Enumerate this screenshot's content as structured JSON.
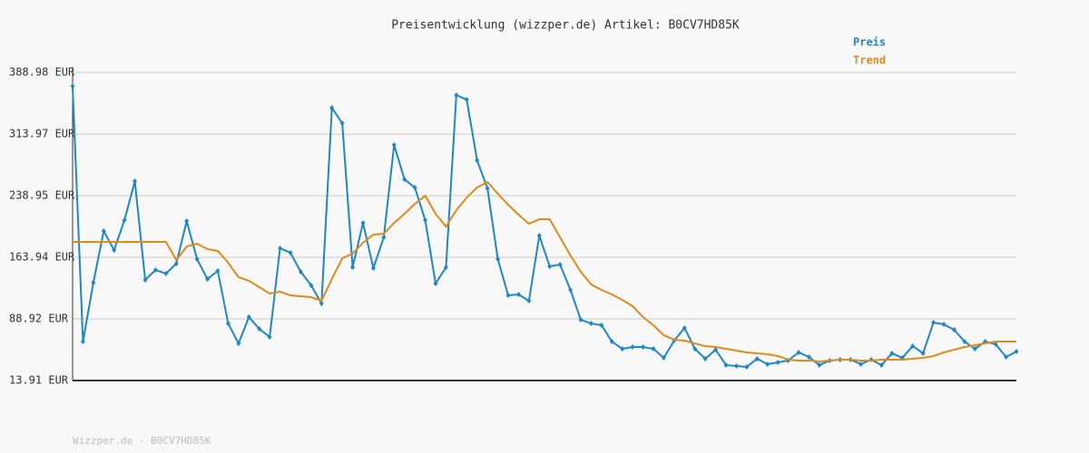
{
  "chart_data": {
    "type": "line",
    "title": "Preisentwicklung (wizzper.de) Artikel: B0CV7HD85K",
    "footer": "Wizzper.de - B0CV7HD85K",
    "ylim": [
      13.91,
      388.98
    ],
    "yticks": [
      {
        "value": 13.91,
        "label": "13.91 EUR"
      },
      {
        "value": 88.92,
        "label": "88.92 EUR"
      },
      {
        "value": 163.94,
        "label": "163.94 EUR"
      },
      {
        "value": 238.95,
        "label": "238.95 EUR"
      },
      {
        "value": 313.97,
        "label": "313.97 EUR"
      },
      {
        "value": 388.98,
        "label": "388.98 EUR"
      }
    ],
    "grid": true,
    "legend": "top-right",
    "series": [
      {
        "name": "Preis",
        "color": "#1f87c3",
        "markers": true,
        "values": [
          372.4,
          61.3,
          133.0,
          195.9,
          172.7,
          209.2,
          256.6,
          136.4,
          148.5,
          144.1,
          156.2,
          208.1,
          161.7,
          137.5,
          147.4,
          83.4,
          59.1,
          91.1,
          76.8,
          66.9,
          175.0,
          169.5,
          146.3,
          129.7,
          107.7,
          345.9,
          327.2,
          151.8,
          205.9,
          150.7,
          188.2,
          300.7,
          258.8,
          248.9,
          209.2,
          131.9,
          151.8,
          361.4,
          355.9,
          282.0,
          247.8,
          161.7,
          117.6,
          118.7,
          111.0,
          190.4,
          152.9,
          155.1,
          124.2,
          87.8,
          83.4,
          81.2,
          61.3,
          52.5,
          54.7,
          54.7,
          52.5,
          41.5,
          62.4,
          77.9,
          52.5,
          40.4,
          51.4,
          32.7,
          31.6,
          30.5,
          40.4,
          33.8,
          36.0,
          38.2,
          48.1,
          42.6,
          32.7,
          38.2,
          39.3,
          39.3,
          33.8,
          39.3,
          32.7,
          47.0,
          41.5,
          55.8,
          47.0,
          84.5,
          82.3,
          75.7,
          61.3,
          52.5,
          61.3,
          58.0,
          42.6,
          49.2
        ]
      },
      {
        "name": "Trend",
        "color": "#e08a1e",
        "markers": false,
        "values": [
          182.7,
          182.7,
          182.7,
          182.7,
          182.7,
          182.7,
          182.7,
          182.7,
          182.7,
          182.7,
          160.6,
          177.2,
          180.5,
          173.9,
          171.7,
          157.3,
          139.7,
          135.3,
          127.5,
          119.8,
          122.0,
          117.6,
          116.5,
          115.4,
          111.0,
          137.5,
          162.8,
          168.4,
          181.6,
          191.5,
          192.6,
          205.9,
          216.9,
          229.0,
          238.9,
          216.9,
          201.4,
          221.3,
          236.7,
          248.9,
          255.5,
          241.2,
          227.9,
          215.8,
          204.8,
          210.3,
          210.3,
          188.2,
          166.1,
          146.3,
          130.8,
          124.2,
          118.7,
          112.1,
          104.4,
          91.1,
          81.2,
          69.1,
          63.6,
          62.4,
          59.1,
          55.8,
          54.7,
          52.5,
          50.3,
          48.1,
          47.0,
          45.9,
          43.7,
          39.3,
          38.2,
          38.2,
          37.1,
          38.2,
          39.3,
          39.3,
          38.2,
          38.2,
          39.3,
          39.3,
          39.3,
          40.4,
          41.5,
          43.7,
          48.1,
          51.4,
          54.7,
          56.9,
          59.1,
          61.3,
          61.3,
          61.3
        ]
      }
    ]
  }
}
